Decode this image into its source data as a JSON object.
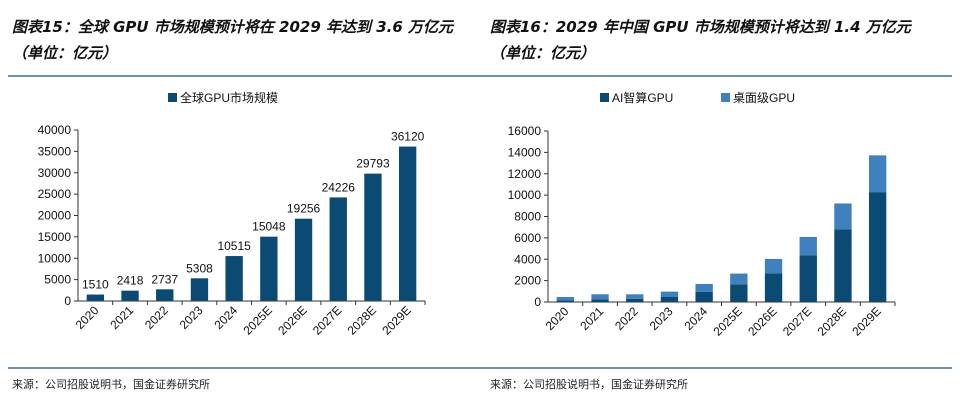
{
  "left": {
    "title": "图表15：全球 GPU 市场规模预计将在 2029 年达到 3.6 万亿元（单位：亿元）",
    "source": "来源：公司招股说明书，国金证券研究所"
  },
  "right": {
    "title": "图表16：2029 年中国 GPU 市场规模预计将达到 1.4 万亿元（单位：亿元）",
    "source": "来源：公司招股说明书，国金证券研究所"
  },
  "chart_data": [
    {
      "type": "bar",
      "categories": [
        "2020",
        "2021",
        "2022",
        "2023",
        "2024",
        "2025E",
        "2026E",
        "2027E",
        "2028E",
        "2029E"
      ],
      "series": [
        {
          "name": "全球GPU市场规模",
          "values": [
            1510,
            2418,
            2737,
            5308,
            10515,
            15048,
            19256,
            24226,
            29793,
            36120
          ],
          "color": "#0b4a73"
        }
      ],
      "ylim": [
        0,
        40000
      ],
      "yticks": [
        0,
        5000,
        10000,
        15000,
        20000,
        25000,
        30000,
        35000,
        40000
      ],
      "legend": "top",
      "grid": false
    },
    {
      "type": "bar",
      "stacked": true,
      "categories": [
        "2020",
        "2021",
        "2022",
        "2023",
        "2024",
        "2025E",
        "2026E",
        "2027E",
        "2028E",
        "2029E"
      ],
      "series": [
        {
          "name": "AI智算GPU",
          "values": [
            150,
            250,
            300,
            470,
            940,
            1660,
            2690,
            4380,
            6810,
            10280
          ],
          "color": "#0b4a73"
        },
        {
          "name": "桌面级GPU",
          "values": [
            320,
            470,
            420,
            500,
            750,
            1000,
            1340,
            1710,
            2410,
            3440
          ],
          "color": "#3f80bf"
        }
      ],
      "ylim": [
        0,
        16000
      ],
      "yticks": [
        0,
        2000,
        4000,
        6000,
        8000,
        10000,
        12000,
        14000,
        16000
      ],
      "legend": "top",
      "grid": false
    }
  ]
}
